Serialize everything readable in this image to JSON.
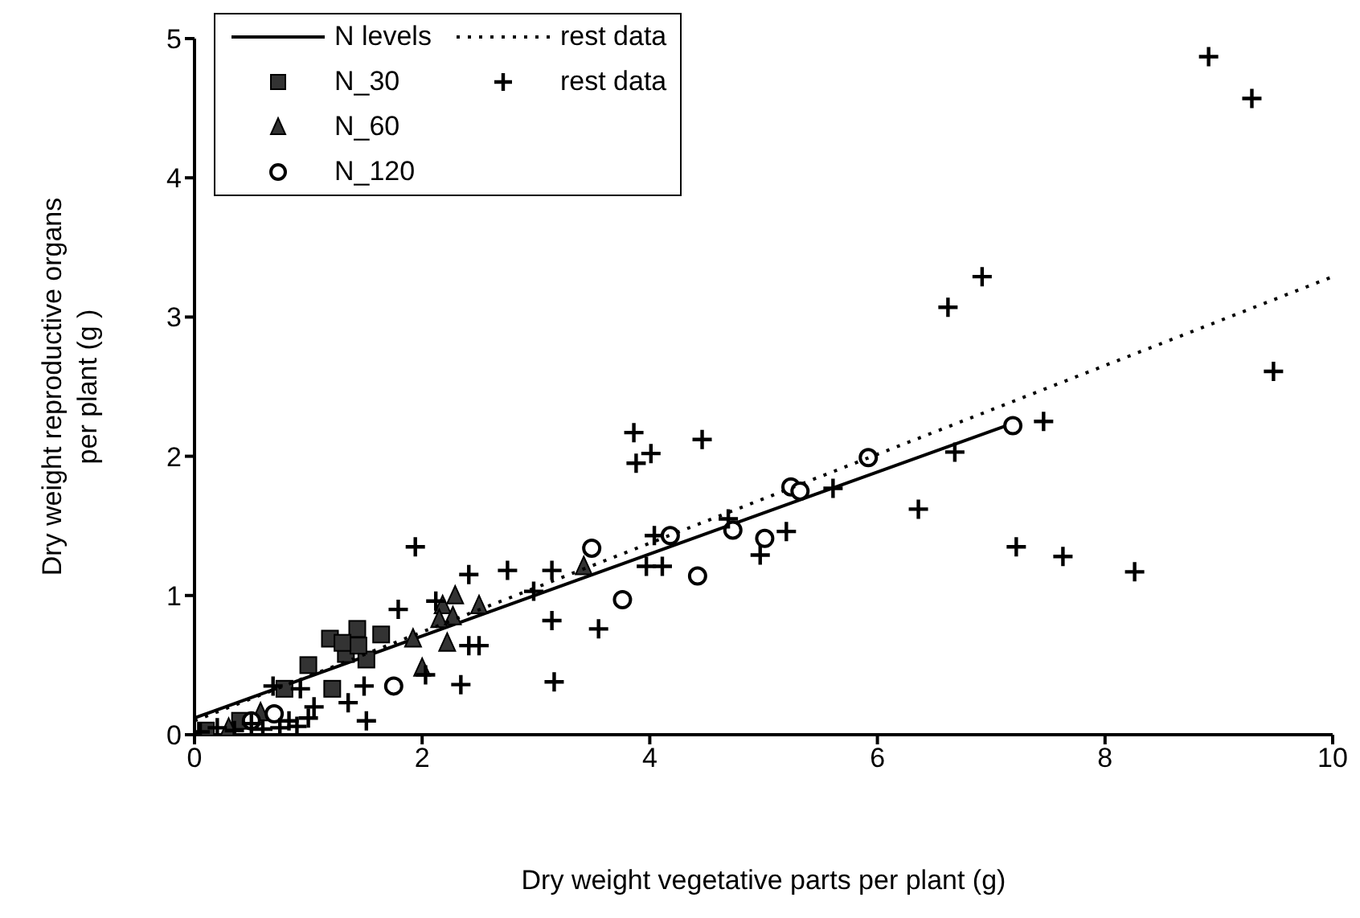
{
  "chart_data": {
    "type": "scatter",
    "xlabel": "Dry weight vegetative parts per plant (g)",
    "ylabel": "Dry weight reproductive organs per plant (g )",
    "xlim": [
      0,
      10
    ],
    "xticks": [
      0,
      2,
      4,
      6,
      8,
      10
    ],
    "ylim": [
      0,
      5
    ],
    "yticks": [
      0,
      1,
      2,
      3,
      4,
      5
    ],
    "legend": "top left",
    "series": [
      {
        "name": "N levels",
        "type": "line",
        "color": "#000000",
        "line_style": "solid",
        "marker": "none",
        "x": [
          0,
          7.2
        ],
        "values": [
          0.12,
          2.24
        ]
      },
      {
        "name": "N_30",
        "color": "#333333",
        "marker": "square",
        "x": [
          1.19,
          1.43,
          1.64,
          1.0,
          1.21,
          1.33,
          1.51,
          0.79,
          1.44,
          1.3,
          0.4,
          0.1
        ],
        "values": [
          0.69,
          0.76,
          0.72,
          0.5,
          0.33,
          0.58,
          0.54,
          0.33,
          0.64,
          0.66,
          0.1,
          0.03
        ]
      },
      {
        "name": "N_60",
        "color": "#333333",
        "marker": "triangle",
        "x": [
          2.29,
          2.5,
          2.18,
          2.15,
          2.27,
          1.92,
          2.22,
          2.0,
          3.42,
          0.58,
          0.3
        ],
        "values": [
          1.0,
          0.93,
          0.93,
          0.83,
          0.85,
          0.69,
          0.66,
          0.48,
          1.21,
          0.16,
          0.05
        ]
      },
      {
        "name": "N_120",
        "color": "#000000",
        "marker": "circle",
        "x": [
          3.49,
          3.76,
          4.42,
          4.18,
          4.73,
          5.01,
          5.24,
          5.32,
          5.92,
          7.19,
          1.75,
          0.5,
          0.7
        ],
        "values": [
          1.34,
          0.97,
          1.14,
          1.43,
          1.47,
          1.41,
          1.78,
          1.75,
          1.99,
          2.22,
          0.35,
          0.1,
          0.15
        ]
      },
      {
        "name": "rest data",
        "type": "line",
        "color": "#000000",
        "line_style": "dotted",
        "marker": "none",
        "x": [
          0,
          10
        ],
        "values": [
          0.1,
          3.29
        ]
      },
      {
        "name": "rest data",
        "color": "#000000",
        "marker": "cross",
        "x": [
          8.91,
          9.29,
          6.62,
          6.92,
          9.48,
          7.46,
          6.68,
          7.22,
          7.63,
          8.26,
          6.36,
          3.86,
          4.01,
          3.88,
          4.46,
          5.61,
          5.2,
          4.97,
          4.04,
          3.97,
          4.11,
          3.14,
          2.98,
          3.14,
          3.55,
          3.16,
          4.69,
          1.94,
          2.41,
          2.75,
          1.79,
          2.12,
          2.41,
          2.5,
          2.34,
          2.03,
          1.49,
          1.35,
          1.51,
          0.93,
          1.05,
          0.83,
          0.69,
          0.05,
          0.2,
          0.35,
          0.5,
          0.6,
          0.75,
          0.9,
          1.0
        ],
        "values": [
          4.87,
          4.57,
          3.07,
          3.29,
          2.61,
          2.25,
          2.03,
          1.35,
          1.28,
          1.17,
          1.62,
          2.17,
          2.02,
          1.95,
          2.12,
          1.77,
          1.46,
          1.29,
          1.43,
          1.21,
          1.21,
          1.18,
          1.03,
          0.82,
          0.76,
          0.38,
          1.55,
          1.35,
          1.15,
          1.18,
          0.9,
          0.96,
          0.64,
          0.64,
          0.36,
          0.43,
          0.35,
          0.23,
          0.1,
          0.33,
          0.2,
          0.1,
          0.35,
          0.02,
          0.05,
          0.03,
          0.08,
          0.04,
          0.05,
          0.06,
          0.12
        ]
      }
    ]
  }
}
